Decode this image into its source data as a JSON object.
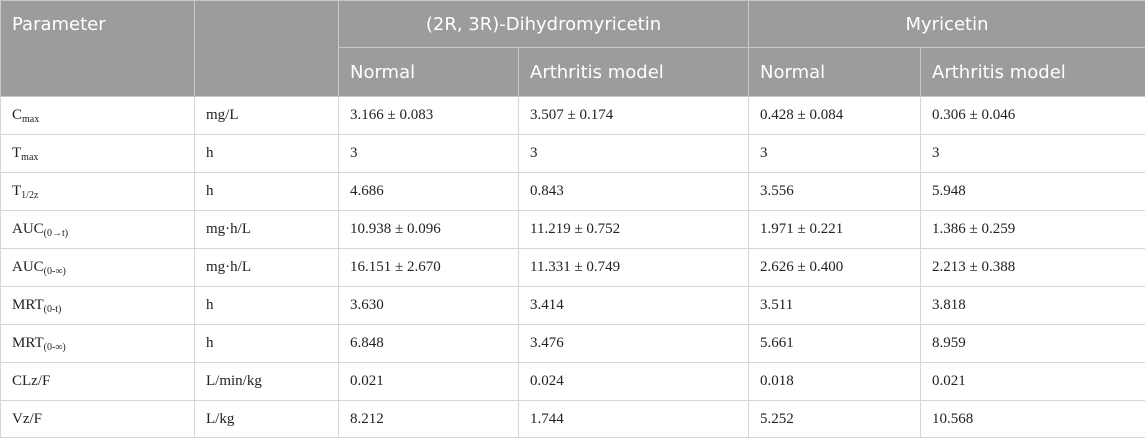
{
  "header": {
    "parameter": "Parameter",
    "unit": "",
    "group1": "(2R, 3R)-Dihydromyricetin",
    "group2": "Myricetin",
    "normal_1": "Normal",
    "arthritis_1": "Arthritis model",
    "normal_2": "Normal",
    "arthritis_2": "Arthritis model"
  },
  "rows": [
    {
      "param": "C",
      "sub": "max",
      "unit": "mg/L",
      "dhm_normal": "3.166 ± 0.083",
      "dhm_arthritis": "3.507 ± 0.174",
      "myr_normal": "0.428 ± 0.084",
      "myr_arthritis": "0.306 ± 0.046"
    },
    {
      "param": "T",
      "sub": "max",
      "unit": "h",
      "dhm_normal": "3",
      "dhm_arthritis": "3",
      "myr_normal": "3",
      "myr_arthritis": "3"
    },
    {
      "param": "T",
      "sub": "1/2z",
      "unit": "h",
      "dhm_normal": "4.686",
      "dhm_arthritis": "0.843",
      "myr_normal": "3.556",
      "myr_arthritis": "5.948"
    },
    {
      "param": "AUC",
      "sub": "(0→t)",
      "unit": "mg·h/L",
      "dhm_normal": "10.938 ± 0.096",
      "dhm_arthritis": "11.219 ± 0.752",
      "myr_normal": "1.971 ± 0.221",
      "myr_arthritis": "1.386 ± 0.259"
    },
    {
      "param": "AUC",
      "sub": "(0-∞)",
      "unit": "mg·h/L",
      "dhm_normal": "16.151 ± 2.670",
      "dhm_arthritis": "11.331 ± 0.749",
      "myr_normal": "2.626 ± 0.400",
      "myr_arthritis": "2.213 ± 0.388"
    },
    {
      "param": "MRT",
      "sub": "(0-t)",
      "unit": "h",
      "dhm_normal": "3.630",
      "dhm_arthritis": "3.414",
      "myr_normal": "3.511",
      "myr_arthritis": "3.818"
    },
    {
      "param": "MRT",
      "sub": "(0-∞)",
      "unit": "h",
      "dhm_normal": "6.848",
      "dhm_arthritis": "3.476",
      "myr_normal": "5.661",
      "myr_arthritis": "8.959"
    },
    {
      "param": "CLz/F",
      "sub": "",
      "unit": "L/min/kg",
      "dhm_normal": "0.021",
      "dhm_arthritis": "0.024",
      "myr_normal": "0.018",
      "myr_arthritis": "0.021"
    },
    {
      "param": "Vz/F",
      "sub": "",
      "unit": "L/kg",
      "dhm_normal": "8.212",
      "dhm_arthritis": "1.744",
      "myr_normal": "5.252",
      "myr_arthritis": "10.568"
    }
  ]
}
